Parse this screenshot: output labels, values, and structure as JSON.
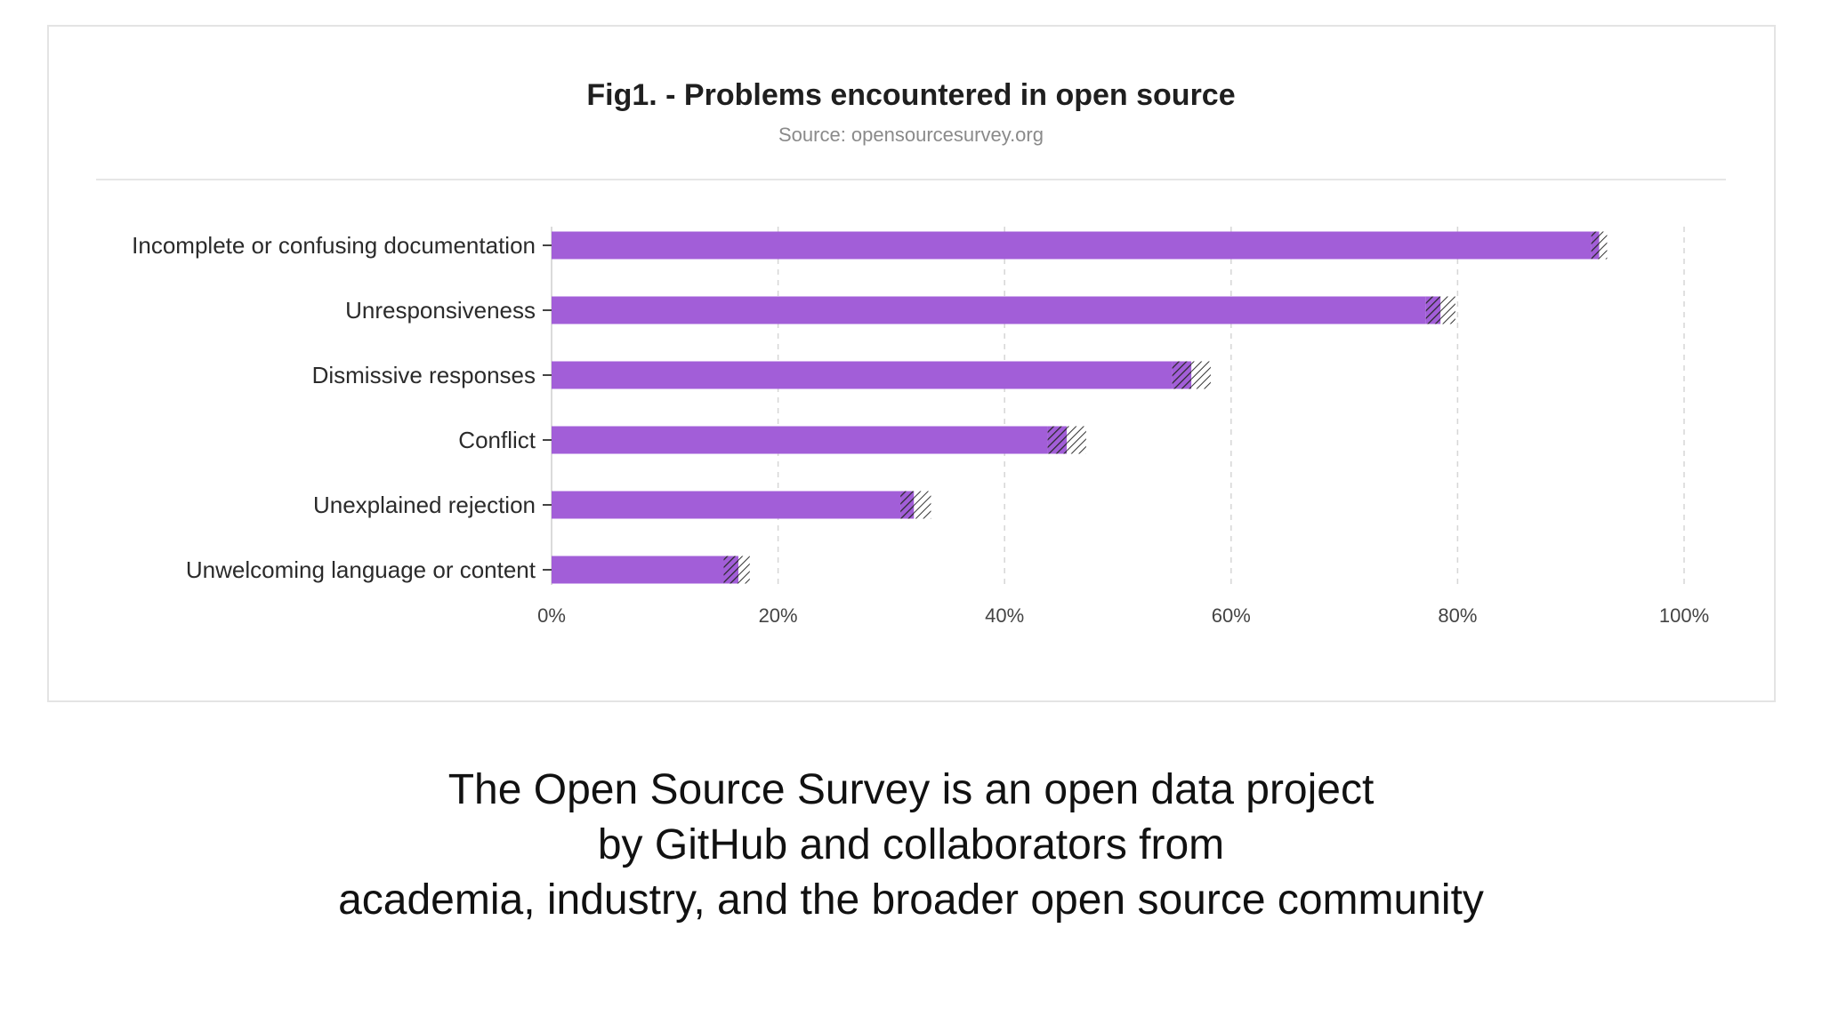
{
  "chart_data": {
    "type": "bar",
    "orientation": "horizontal",
    "title": "Fig1. - Problems encountered in open source",
    "subtitle": "Source: opensourcesurvey.org",
    "categories": [
      "Incomplete or confusing documentation",
      "Unresponsiveness",
      "Dismissive responses",
      "Conflict",
      "Unexplained rejection",
      "Unwelcoming language or content"
    ],
    "values": [
      92.5,
      78.5,
      56.5,
      45.5,
      32,
      16.5
    ],
    "error_band": [
      [
        91.8,
        93.2
      ],
      [
        77.2,
        79.8
      ],
      [
        54.8,
        58.2
      ],
      [
        43.8,
        47.2
      ],
      [
        30.8,
        33.5
      ],
      [
        15.2,
        17.5
      ]
    ],
    "xlim": [
      0,
      100
    ],
    "xticks": [
      0,
      20,
      40,
      60,
      80,
      100
    ],
    "xtick_labels": [
      "0%",
      "20%",
      "40%",
      "60%",
      "80%",
      "100%"
    ],
    "grid": "vertical dashed",
    "bar_color": "#a25ed8",
    "legend": "none"
  },
  "caption": {
    "line1": "The Open Source Survey is an open data project",
    "line2": "by GitHub and collaborators from",
    "line3": "academia, industry, and the broader open source community"
  }
}
